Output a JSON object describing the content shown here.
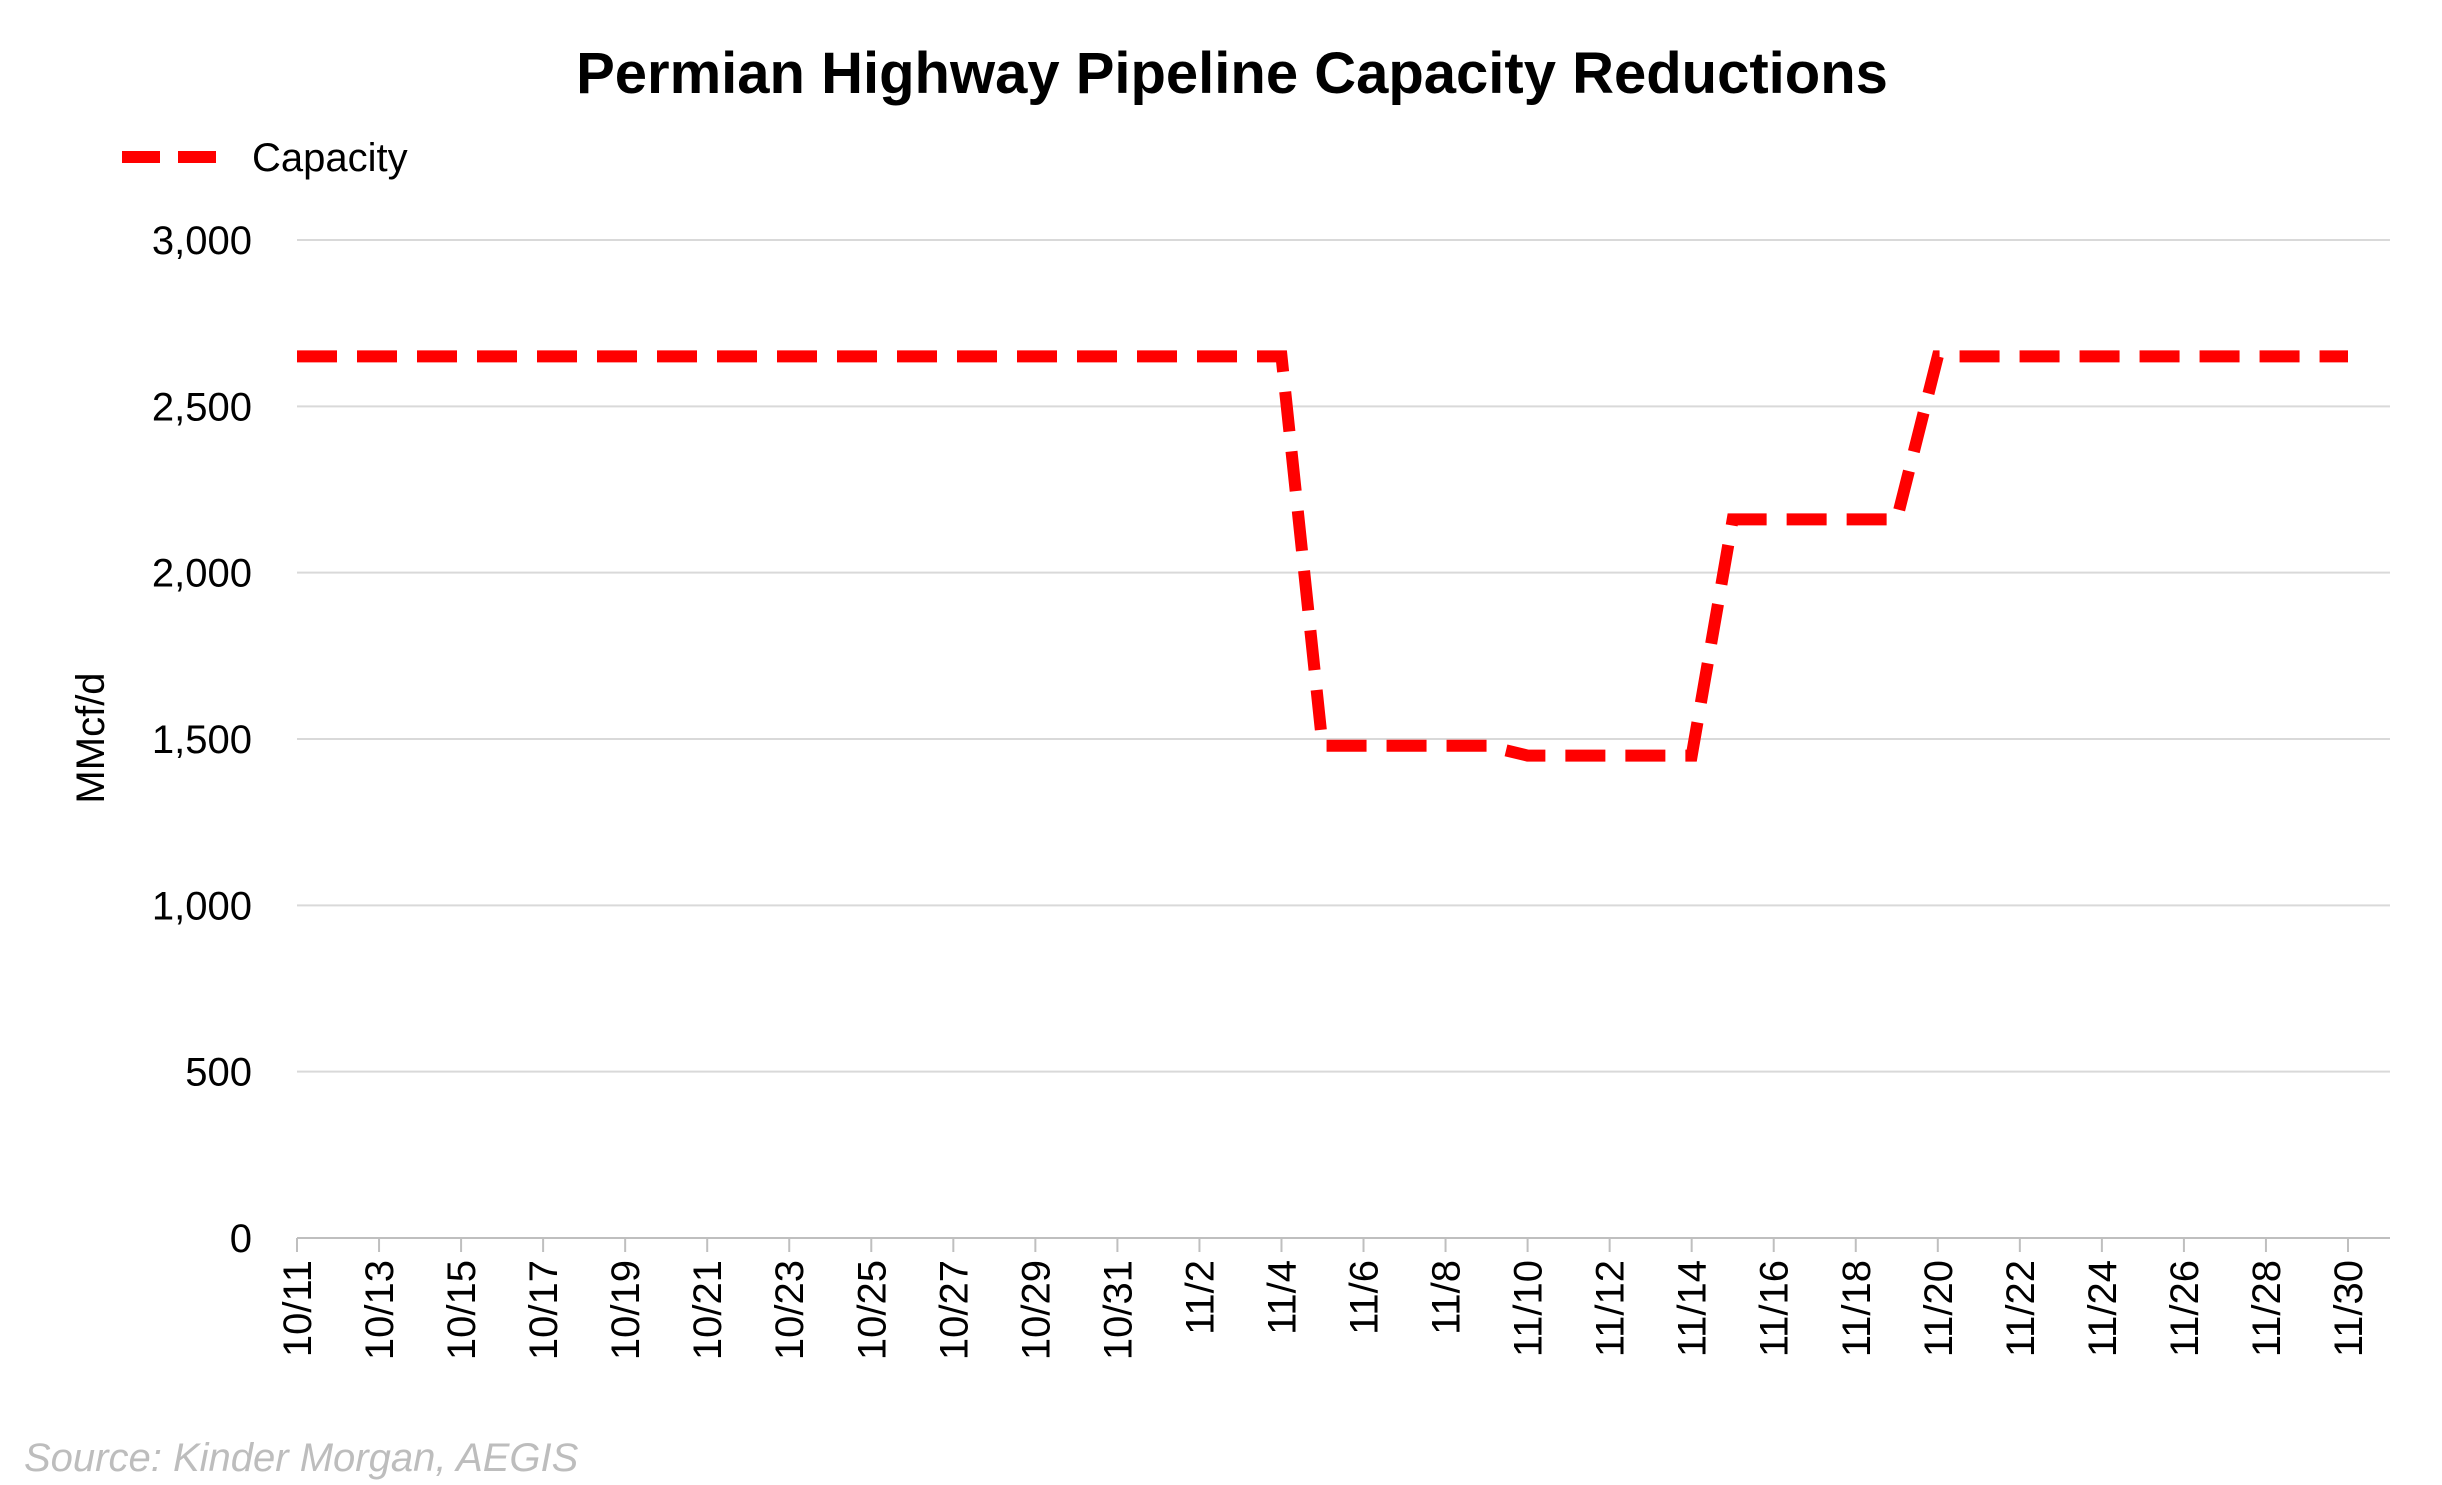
{
  "chart_data": {
    "type": "line",
    "title": "Permian Highway Pipeline Capacity Reductions",
    "ylabel": "MMcf/d",
    "xlabel": "",
    "ylim": [
      0,
      3000
    ],
    "y_ticks": [
      0,
      500,
      1000,
      1500,
      2000,
      2500,
      3000
    ],
    "y_tick_labels": [
      "0",
      "500",
      "1,000",
      "1,500",
      "2,000",
      "2,500",
      "3,000"
    ],
    "x_tick_labels": [
      "10/11",
      "10/13",
      "10/15",
      "10/17",
      "10/19",
      "10/21",
      "10/23",
      "10/25",
      "10/27",
      "10/29",
      "10/31",
      "11/2",
      "11/4",
      "11/6",
      "11/8",
      "11/10",
      "11/12",
      "11/14",
      "11/16",
      "11/18",
      "11/20",
      "11/22",
      "11/24",
      "11/26",
      "11/28",
      "11/30"
    ],
    "grid": true,
    "legend_position": "top-left",
    "source": "Source: Kinder Morgan, AEGIS",
    "series": [
      {
        "name": "Capacity",
        "color": "#ff0000",
        "style": "dashed",
        "x": [
          "10/11",
          "10/12",
          "10/13",
          "10/14",
          "10/15",
          "10/16",
          "10/17",
          "10/18",
          "10/19",
          "10/20",
          "10/21",
          "10/22",
          "10/23",
          "10/24",
          "10/25",
          "10/26",
          "10/27",
          "10/28",
          "10/29",
          "10/30",
          "10/31",
          "11/1",
          "11/2",
          "11/3",
          "11/4",
          "11/5",
          "11/6",
          "11/7",
          "11/8",
          "11/9",
          "11/10",
          "11/11",
          "11/12",
          "11/13",
          "11/14",
          "11/15",
          "11/16",
          "11/17",
          "11/18",
          "11/19",
          "11/20",
          "11/21",
          "11/22",
          "11/23",
          "11/24",
          "11/25",
          "11/26",
          "11/27",
          "11/28",
          "11/29",
          "11/30"
        ],
        "values": [
          2650,
          2650,
          2650,
          2650,
          2650,
          2650,
          2650,
          2650,
          2650,
          2650,
          2650,
          2650,
          2650,
          2650,
          2650,
          2650,
          2650,
          2650,
          2650,
          2650,
          2650,
          2650,
          2650,
          2650,
          2650,
          1480,
          1480,
          1480,
          1480,
          1480,
          1450,
          1450,
          1450,
          1450,
          1450,
          2160,
          2160,
          2160,
          2160,
          2160,
          2650,
          2650,
          2650,
          2650,
          2650,
          2650,
          2650,
          2650,
          2650,
          2650,
          2650
        ]
      }
    ]
  }
}
